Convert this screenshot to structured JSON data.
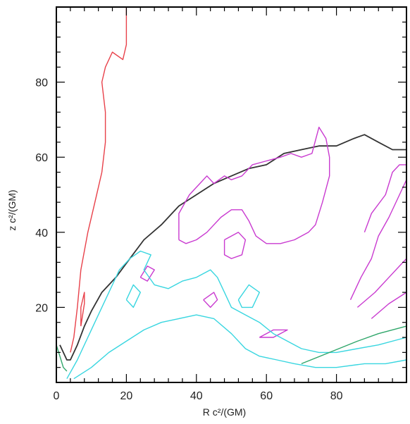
{
  "chart_data": {
    "type": "line",
    "title": "",
    "xlabel": "R c²/(GM)",
    "ylabel": "z c²/(GM)",
    "xlim": [
      0,
      100
    ],
    "ylim": [
      0,
      100
    ],
    "x_ticks": [
      {
        "value": 0,
        "label": "0"
      },
      {
        "value": 20,
        "label": "20"
      },
      {
        "value": 40,
        "label": "40"
      },
      {
        "value": 60,
        "label": "60"
      },
      {
        "value": 80,
        "label": "80"
      }
    ],
    "y_ticks": [
      {
        "value": 20,
        "label": "20"
      },
      {
        "value": 40,
        "label": "40"
      },
      {
        "value": 60,
        "label": "60"
      },
      {
        "value": 80,
        "label": "80"
      }
    ],
    "colors": {
      "red": "#e8414a",
      "black": "#333333",
      "magenta": "#c93ad0",
      "cyan": "#39d6e0",
      "green": "#2fa66a",
      "frame": "#000000"
    },
    "series": [
      {
        "color": "red",
        "points": [
          [
            4,
            8
          ],
          [
            5,
            12
          ],
          [
            6,
            20
          ],
          [
            7,
            30
          ],
          [
            9,
            40
          ],
          [
            11,
            48
          ],
          [
            13,
            56
          ],
          [
            14,
            64
          ],
          [
            14,
            72
          ],
          [
            13,
            80
          ],
          [
            14,
            84
          ],
          [
            16,
            88
          ],
          [
            19,
            86
          ],
          [
            20,
            90
          ],
          [
            20,
            94
          ],
          [
            20,
            100
          ]
        ]
      },
      {
        "color": "red",
        "points": [
          [
            7,
            15
          ],
          [
            8,
            21
          ],
          [
            8,
            24
          ],
          [
            7,
            20
          ],
          [
            7,
            15
          ]
        ]
      },
      {
        "color": "black",
        "points": [
          [
            1,
            10
          ],
          [
            3,
            6
          ],
          [
            4,
            6
          ],
          [
            6,
            10
          ],
          [
            8,
            15
          ],
          [
            10,
            19
          ],
          [
            13,
            24
          ],
          [
            17,
            28
          ],
          [
            21,
            33
          ],
          [
            25,
            38
          ],
          [
            30,
            42
          ],
          [
            35,
            47
          ],
          [
            40,
            50
          ],
          [
            45,
            53
          ],
          [
            50,
            55
          ],
          [
            55,
            57
          ],
          [
            60,
            58
          ],
          [
            65,
            61
          ],
          [
            70,
            62
          ],
          [
            75,
            63
          ],
          [
            80,
            63
          ],
          [
            85,
            65
          ],
          [
            88,
            66
          ],
          [
            92,
            64
          ],
          [
            96,
            62
          ],
          [
            100,
            62
          ]
        ]
      },
      {
        "color": "magenta",
        "points": [
          [
            35,
            38
          ],
          [
            35,
            45
          ],
          [
            38,
            50
          ],
          [
            41,
            53
          ],
          [
            43,
            55
          ],
          [
            45,
            53
          ],
          [
            48,
            55
          ],
          [
            50,
            54
          ],
          [
            53,
            55
          ],
          [
            56,
            58
          ],
          [
            60,
            59
          ],
          [
            64,
            60
          ],
          [
            67,
            61
          ],
          [
            70,
            60
          ],
          [
            73,
            61
          ],
          [
            75,
            68
          ],
          [
            77,
            65
          ],
          [
            78,
            60
          ],
          [
            78,
            55
          ],
          [
            76,
            48
          ],
          [
            74,
            42
          ],
          [
            72,
            40
          ],
          [
            68,
            38
          ],
          [
            64,
            37
          ],
          [
            60,
            37
          ],
          [
            57,
            39
          ],
          [
            55,
            43
          ],
          [
            53,
            46
          ],
          [
            50,
            46
          ],
          [
            47,
            44
          ],
          [
            43,
            40
          ],
          [
            40,
            38
          ],
          [
            37,
            37
          ],
          [
            35,
            38
          ]
        ]
      },
      {
        "color": "magenta",
        "points": [
          [
            48,
            38
          ],
          [
            52,
            40
          ],
          [
            54,
            38
          ],
          [
            53,
            34
          ],
          [
            50,
            33
          ],
          [
            48,
            34
          ],
          [
            48,
            38
          ]
        ]
      },
      {
        "color": "magenta",
        "points": [
          [
            42,
            22
          ],
          [
            45,
            24
          ],
          [
            46,
            22
          ],
          [
            44,
            20
          ],
          [
            42,
            22
          ]
        ]
      },
      {
        "color": "magenta",
        "points": [
          [
            84,
            22
          ],
          [
            87,
            28
          ],
          [
            90,
            33
          ],
          [
            92,
            39
          ],
          [
            95,
            44
          ],
          [
            98,
            50
          ],
          [
            100,
            54
          ]
        ]
      },
      {
        "color": "magenta",
        "points": [
          [
            86,
            20
          ],
          [
            91,
            24
          ],
          [
            95,
            28
          ],
          [
            100,
            33
          ]
        ]
      },
      {
        "color": "magenta",
        "points": [
          [
            90,
            17
          ],
          [
            95,
            21
          ],
          [
            100,
            24
          ]
        ]
      },
      {
        "color": "magenta",
        "points": [
          [
            88,
            40
          ],
          [
            90,
            45
          ],
          [
            94,
            50
          ],
          [
            96,
            56
          ],
          [
            98,
            58
          ],
          [
            100,
            58
          ]
        ]
      },
      {
        "color": "magenta",
        "points": [
          [
            24,
            28
          ],
          [
            26,
            31
          ],
          [
            28,
            30
          ],
          [
            26,
            27
          ],
          [
            24,
            28
          ]
        ]
      },
      {
        "color": "magenta",
        "points": [
          [
            58,
            12
          ],
          [
            62,
            14
          ],
          [
            66,
            14
          ],
          [
            62,
            12
          ],
          [
            58,
            12
          ]
        ]
      },
      {
        "color": "cyan",
        "points": [
          [
            3,
            1
          ],
          [
            6,
            6
          ],
          [
            9,
            12
          ],
          [
            12,
            18
          ],
          [
            15,
            24
          ],
          [
            18,
            30
          ],
          [
            21,
            33
          ],
          [
            24,
            35
          ],
          [
            27,
            34
          ],
          [
            25,
            30
          ],
          [
            28,
            26
          ],
          [
            32,
            25
          ],
          [
            36,
            27
          ],
          [
            40,
            28
          ],
          [
            44,
            30
          ],
          [
            46,
            28
          ],
          [
            48,
            24
          ],
          [
            50,
            20
          ],
          [
            54,
            18
          ],
          [
            58,
            16
          ],
          [
            62,
            13
          ],
          [
            66,
            11
          ],
          [
            70,
            9
          ],
          [
            75,
            8
          ],
          [
            80,
            8
          ],
          [
            86,
            9
          ],
          [
            92,
            10
          ],
          [
            100,
            12
          ]
        ]
      },
      {
        "color": "cyan",
        "points": [
          [
            5,
            1
          ],
          [
            10,
            4
          ],
          [
            15,
            8
          ],
          [
            20,
            11
          ],
          [
            25,
            14
          ],
          [
            30,
            16
          ],
          [
            35,
            17
          ],
          [
            40,
            18
          ],
          [
            45,
            17
          ],
          [
            50,
            13
          ],
          [
            54,
            9
          ],
          [
            58,
            7
          ],
          [
            63,
            6
          ],
          [
            68,
            5
          ],
          [
            74,
            4
          ],
          [
            80,
            4
          ],
          [
            88,
            5
          ],
          [
            94,
            5
          ],
          [
            100,
            6
          ]
        ]
      },
      {
        "color": "cyan",
        "points": [
          [
            52,
            22
          ],
          [
            55,
            26
          ],
          [
            58,
            24
          ],
          [
            56,
            20
          ],
          [
            53,
            20
          ],
          [
            52,
            22
          ]
        ]
      },
      {
        "color": "cyan",
        "points": [
          [
            20,
            22
          ],
          [
            22,
            26
          ],
          [
            24,
            24
          ],
          [
            22,
            20
          ],
          [
            20,
            22
          ]
        ]
      },
      {
        "color": "green",
        "points": [
          [
            70,
            5
          ],
          [
            78,
            8
          ],
          [
            86,
            11
          ],
          [
            92,
            13
          ],
          [
            100,
            15
          ]
        ]
      },
      {
        "color": "green",
        "points": [
          [
            0,
            10
          ],
          [
            1,
            7
          ],
          [
            2,
            4
          ],
          [
            3,
            3
          ]
        ]
      }
    ]
  }
}
